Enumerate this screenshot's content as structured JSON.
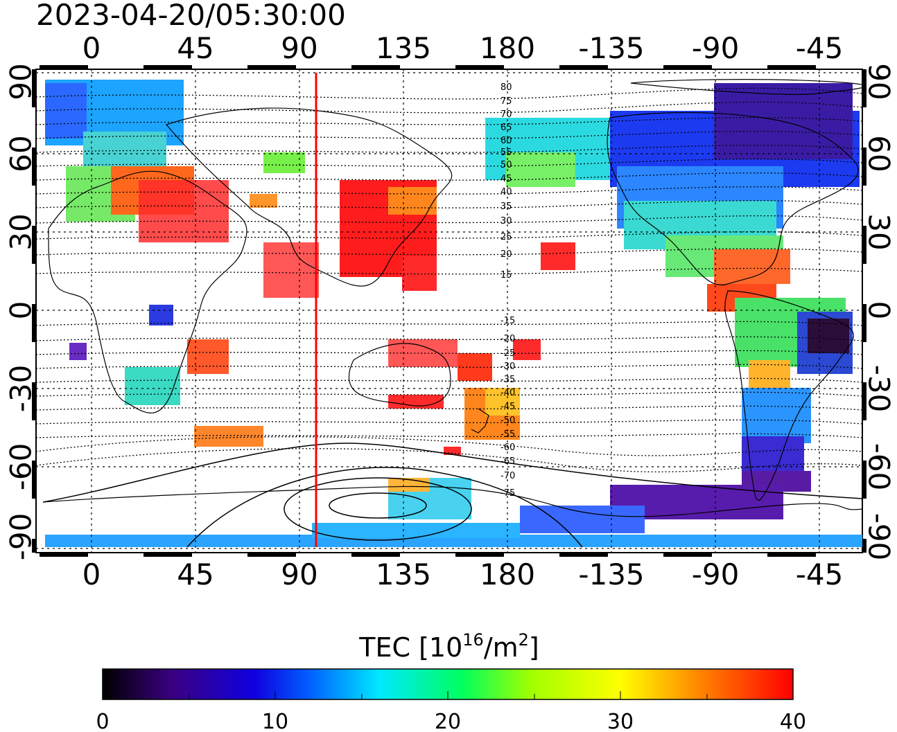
{
  "timestamp": "2023-04-20/05:30:00",
  "map": {
    "lon_ticks": [
      "0",
      "45",
      "90",
      "135",
      "180",
      "-135",
      "-90",
      "-45"
    ],
    "lat_ticks": [
      "90",
      "60",
      "30",
      "0",
      "-30",
      "-60",
      "-90"
    ],
    "contour_labels_north": [
      "80",
      "75",
      "70",
      "65",
      "60",
      "55",
      "50",
      "45",
      "40",
      "35",
      "30",
      "25",
      "20",
      "15"
    ],
    "contour_labels_south": [
      "-15",
      "-20",
      "-25",
      "-30",
      "-35",
      "-40",
      "-45",
      "-50",
      "-55",
      "-60",
      "-65",
      "-70",
      "-75"
    ],
    "terminator_line_color": "#ff0000",
    "terminator_lon": 97
  },
  "colorbar": {
    "title_main": "TEC  [10",
    "title_sup1": "16",
    "title_mid": "/m",
    "title_sup2": "2",
    "title_end": "]",
    "ticks": [
      "0",
      "10",
      "20",
      "30",
      "40"
    ],
    "range": [
      0,
      40
    ],
    "colors": [
      "#000000",
      "#3a0080",
      "#0000ff",
      "#00e0ff",
      "#00ff40",
      "#ffff00",
      "#ff8000",
      "#ff0000"
    ]
  }
}
